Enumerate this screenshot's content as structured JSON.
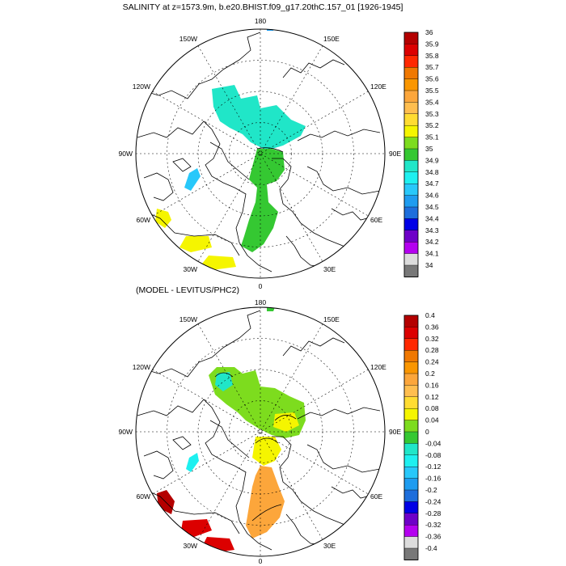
{
  "figure": {
    "title": "SALINITY at z=1573.9m, b.e20.BHIST.f09_g17.20thC.157_01 [1926-1945]",
    "diff_title": "(MODEL - LEVITUS/PHC2)"
  },
  "longitude_labels": {
    "top": "180",
    "bottom": "0",
    "left": "90W",
    "right": "90E",
    "upper_left": "150W",
    "upper_right": "150E",
    "left_upper": "120W",
    "right_upper": "120E",
    "left_lower": "60W",
    "right_lower": "60E",
    "lower_left": "30W",
    "lower_right": "30E"
  },
  "colorbars": {
    "salinity": {
      "labels": [
        "36",
        "35.9",
        "35.8",
        "35.7",
        "35.6",
        "35.5",
        "35.4",
        "35.3",
        "35.2",
        "35.1",
        "35",
        "34.9",
        "34.8",
        "34.7",
        "34.6",
        "34.5",
        "34.4",
        "34.3",
        "34.2",
        "34.1",
        "34"
      ],
      "colors": [
        "#b40000",
        "#dc0000",
        "#ff2800",
        "#f07800",
        "#fa9600",
        "#fca63b",
        "#ffbe4f",
        "#ffdc32",
        "#f5f500",
        "#7ddc1e",
        "#35c832",
        "#20e6c8",
        "#1ef0f0",
        "#28c8fa",
        "#1e9cf0",
        "#1e6edc",
        "#0000e6",
        "#6e00c8",
        "#b400f0",
        "#dcdcdc",
        "#787878"
      ]
    },
    "difference": {
      "labels": [
        "0.4",
        "0.36",
        "0.32",
        "0.28",
        "0.24",
        "0.2",
        "0.16",
        "0.12",
        "0.08",
        "0.04",
        "0",
        "-0.04",
        "-0.08",
        "-0.12",
        "-0.16",
        "-0.2",
        "-0.24",
        "-0.28",
        "-0.32",
        "-0.36",
        "-0.4"
      ],
      "colors": [
        "#b40000",
        "#dc0000",
        "#ff2800",
        "#f07800",
        "#fa9600",
        "#fca63b",
        "#ffbe4f",
        "#ffdc32",
        "#f5f500",
        "#7ddc1e",
        "#35c832",
        "#20e6c8",
        "#1ef0f0",
        "#28c8fa",
        "#1e9cf0",
        "#1e6edc",
        "#0000e6",
        "#6e00c8",
        "#b400f0",
        "#dcdcdc",
        "#787878"
      ]
    }
  }
}
